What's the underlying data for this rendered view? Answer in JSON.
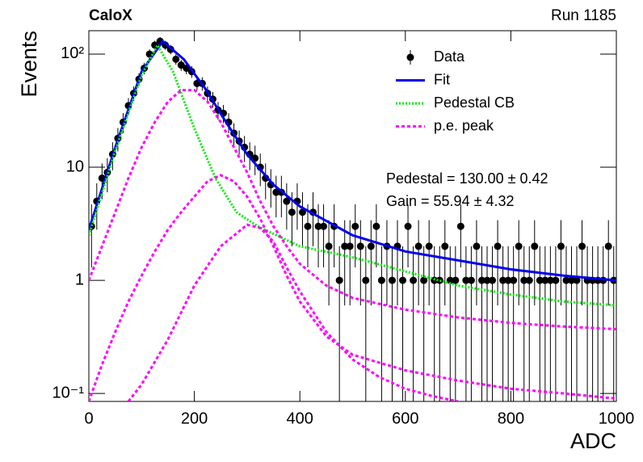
{
  "chart_data": {
    "type": "scatter",
    "title": "CaloX",
    "subtitle": "Run 1185",
    "x_label": "ADC",
    "y_label": "Events",
    "log_y": true,
    "legend": "top-right",
    "xlim": [
      0,
      1000
    ],
    "xticks": [
      0,
      200,
      400,
      600,
      800,
      1000
    ],
    "ylim": [
      0.085,
      161
    ],
    "yticks": [
      {
        "value": 0.1,
        "label": "10⁻¹"
      },
      1,
      10,
      {
        "value": 100,
        "label": "10²"
      }
    ],
    "annotations": [
      "Pedestal = 130.00 ± 0.42",
      "Gain = 55.94 ± 4.32"
    ],
    "series": [
      {
        "name": "Data",
        "color": "#000000",
        "style": "points",
        "x": [
          5,
          15,
          25,
          35,
          45,
          55,
          65,
          75,
          85,
          95,
          105,
          115,
          125,
          135,
          145,
          155,
          165,
          175,
          185,
          195,
          205,
          215,
          225,
          235,
          245,
          255,
          265,
          275,
          285,
          295,
          305,
          315,
          325,
          335,
          345,
          355,
          365,
          375,
          385,
          395,
          405,
          415,
          425,
          435,
          445,
          455,
          465,
          475,
          485,
          495,
          505,
          515,
          525,
          535,
          545,
          555,
          565,
          575,
          585,
          595,
          605,
          615,
          625,
          635,
          645,
          655,
          665,
          675,
          685,
          695,
          705,
          715,
          725,
          735,
          745,
          755,
          765,
          775,
          785,
          795,
          805,
          815,
          825,
          835,
          845,
          855,
          865,
          875,
          885,
          895,
          905,
          915,
          925,
          935,
          945,
          955,
          965,
          975,
          985,
          995
        ],
        "values": [
          3,
          5,
          8,
          9,
          13,
          18,
          25,
          35,
          45,
          60,
          75,
          100,
          120,
          130,
          120,
          110,
          90,
          80,
          75,
          70,
          55,
          55,
          45,
          40,
          32,
          30,
          25,
          20,
          17,
          15,
          13,
          12,
          10,
          8,
          7,
          6,
          6,
          5,
          4,
          5,
          4,
          3,
          4,
          3,
          3,
          2,
          3,
          1,
          2,
          2,
          3,
          2,
          1,
          2,
          3,
          1,
          2,
          1,
          2,
          1,
          3,
          1,
          2,
          1,
          2,
          1,
          1,
          2,
          1,
          1,
          3,
          1,
          1,
          2,
          1,
          1,
          1,
          2,
          1,
          1,
          1,
          2,
          1,
          1,
          2,
          1,
          1,
          1,
          1,
          2,
          1,
          1,
          1,
          2,
          1,
          1,
          1,
          1,
          2,
          1
        ],
        "errors": [
          1.7,
          2.2,
          2.8,
          3,
          3.6,
          4.2,
          5,
          5.9,
          6.7,
          7.7,
          8.7,
          10,
          11,
          11.4,
          11,
          10.5,
          9.5,
          8.9,
          8.7,
          8.4,
          7.4,
          7.4,
          6.7,
          6.3,
          5.7,
          5.5,
          5,
          4.5,
          4.1,
          3.9,
          3.6,
          3.5,
          3.2,
          2.8,
          2.6,
          2.4,
          2.4,
          2.2,
          2,
          2.2,
          2,
          1.7,
          2,
          1.7,
          1.7,
          1.4,
          1.7,
          1,
          1.4,
          1.4,
          1.7,
          1.4,
          1,
          1.4,
          1.7,
          1,
          1.4,
          1,
          1.4,
          1,
          1.7,
          1,
          1.4,
          1,
          1.4,
          1,
          1,
          1.4,
          1,
          1,
          1.7,
          1,
          1,
          1.4,
          1,
          1,
          1,
          1.4,
          1,
          1,
          1,
          1.4,
          1,
          1,
          1.4,
          1,
          1,
          1,
          1,
          1.4,
          1,
          1,
          1,
          1.4,
          1,
          1,
          1,
          1,
          1.4,
          1
        ]
      },
      {
        "name": "Fit",
        "color": "#0000ee",
        "style": "line",
        "dash": "",
        "x": [
          0,
          50,
          100,
          140,
          180,
          220,
          260,
          300,
          350,
          400,
          500,
          600,
          700,
          800,
          900,
          1000
        ],
        "values": [
          2.8,
          15,
          70,
          130,
          90,
          50,
          25,
          13,
          7,
          4.5,
          2.5,
          1.8,
          1.5,
          1.25,
          1.1,
          1.0
        ]
      },
      {
        "name": "Pedestal CB",
        "color": "#00ee00",
        "style": "line",
        "dash": "2,2",
        "x": [
          0,
          50,
          100,
          130,
          160,
          200,
          240,
          280,
          320,
          400,
          500,
          600,
          700,
          800,
          900,
          1000
        ],
        "values": [
          2.5,
          14,
          65,
          120,
          69,
          22,
          8,
          4,
          3,
          2,
          1.6,
          1.2,
          0.9,
          0.75,
          0.65,
          0.6
        ]
      },
      {
        "name": "p.e. peak",
        "color": "#ff00ff",
        "style": "line",
        "dash": "4,3",
        "x": [
          0,
          25,
          50,
          75,
          100,
          125,
          150,
          175,
          200,
          225,
          250,
          275,
          300,
          325,
          350,
          375,
          400,
          450,
          500,
          600,
          700,
          800,
          900,
          1000,
          null,
          0,
          25,
          50,
          75,
          100,
          125,
          150,
          175,
          200,
          225,
          250,
          275,
          300,
          325,
          350,
          375,
          400,
          450,
          500,
          600,
          700,
          800,
          900,
          1000,
          null,
          75,
          100,
          150,
          200,
          250,
          300,
          325,
          350,
          375,
          400,
          450,
          500,
          550,
          600,
          650,
          700
        ],
        "values": [
          1.0,
          2,
          4,
          8,
          15,
          25,
          38,
          48,
          48,
          38,
          25,
          15,
          9,
          5,
          3,
          2,
          1.4,
          0.9,
          0.7,
          0.55,
          0.47,
          0.42,
          0.39,
          0.37,
          null,
          0.085,
          0.18,
          0.35,
          0.65,
          1.1,
          1.8,
          2.8,
          4,
          5.5,
          7.5,
          8.5,
          7.5,
          5.5,
          3.5,
          2,
          1.1,
          0.65,
          0.32,
          0.22,
          0.16,
          0.13,
          0.11,
          0.1,
          0.09,
          null,
          0.085,
          0.12,
          0.3,
          0.9,
          2,
          3.1,
          2.9,
          2.2,
          1.3,
          0.8,
          0.35,
          0.2,
          0.14,
          0.11,
          0.095,
          0.085
        ]
      }
    ]
  }
}
